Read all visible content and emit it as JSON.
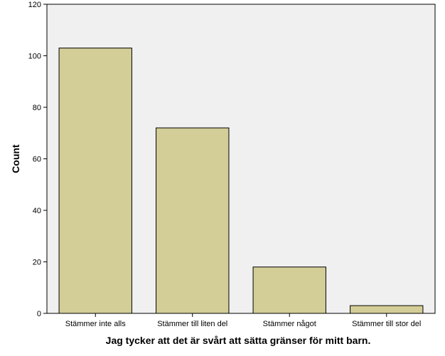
{
  "chart_data": {
    "type": "bar",
    "title": "",
    "xlabel": "Jag tycker att det är svårt att sätta gränser för mitt barn.",
    "ylabel": "Count",
    "categories": [
      "Stämmer inte alls",
      "Stämmer till liten del",
      "Stämmer något",
      "Stämmer till stor del"
    ],
    "values": [
      103,
      72,
      18,
      3
    ],
    "ylim": [
      0,
      120
    ],
    "yticks": [
      0,
      20,
      40,
      60,
      80,
      100,
      120
    ],
    "grid": false,
    "legend": "none",
    "colors": {
      "plot_background": "#f0f0f0",
      "bar_fill": "#d3ce97",
      "bar_stroke": "#000000",
      "frame": "#000000"
    }
  }
}
